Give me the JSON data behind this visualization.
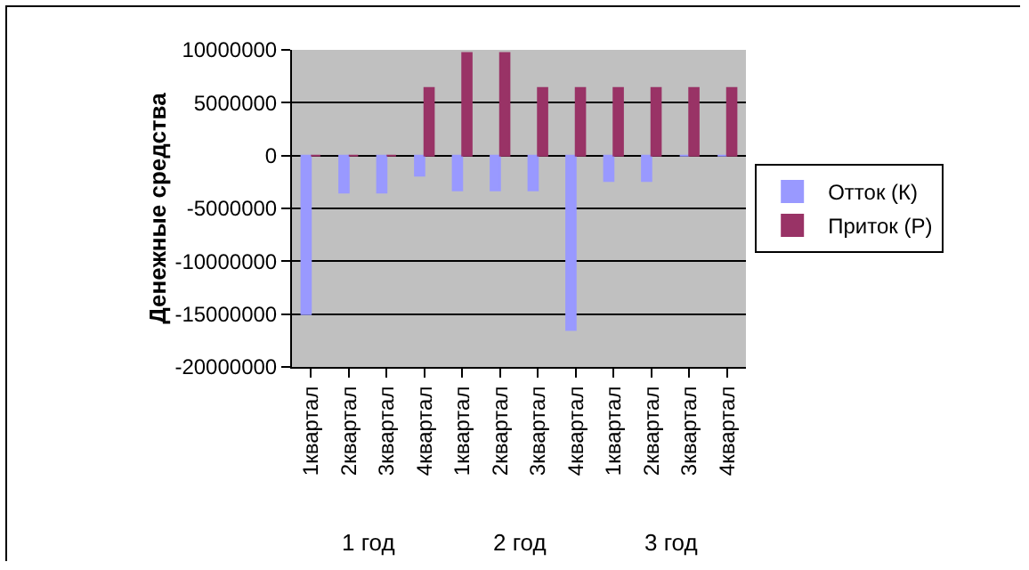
{
  "chart_data": {
    "type": "bar",
    "ylabel": "Денежные средства",
    "categories": [
      "1квартал",
      "2квартал",
      "3квартал",
      "4квартал",
      "1квартал",
      "2квартал",
      "3квартал",
      "4квартал",
      "1квартал",
      "2квартал",
      "3квартал",
      "4квартал"
    ],
    "annotations": [
      "1 год",
      "2 год",
      "3 год"
    ],
    "series": [
      {
        "name": "Отток (К)",
        "color": "#9999ff",
        "values": [
          -15000000,
          -3500000,
          -3500000,
          -1900000,
          -3300000,
          -3300000,
          -3300000,
          -16500000,
          -2400000,
          -2400000,
          0,
          0
        ]
      },
      {
        "name": "Приток (Р)",
        "color": "#993366",
        "values": [
          0,
          0,
          0,
          6400000,
          9700000,
          9700000,
          6400000,
          6400000,
          6400000,
          6400000,
          6400000,
          6400000
        ]
      }
    ],
    "ylim": [
      -20000000,
      10000000
    ],
    "yticks": [
      -20000000,
      -15000000,
      -10000000,
      -5000000,
      0,
      5000000,
      10000000
    ],
    "grid": "y",
    "legend": "right"
  }
}
